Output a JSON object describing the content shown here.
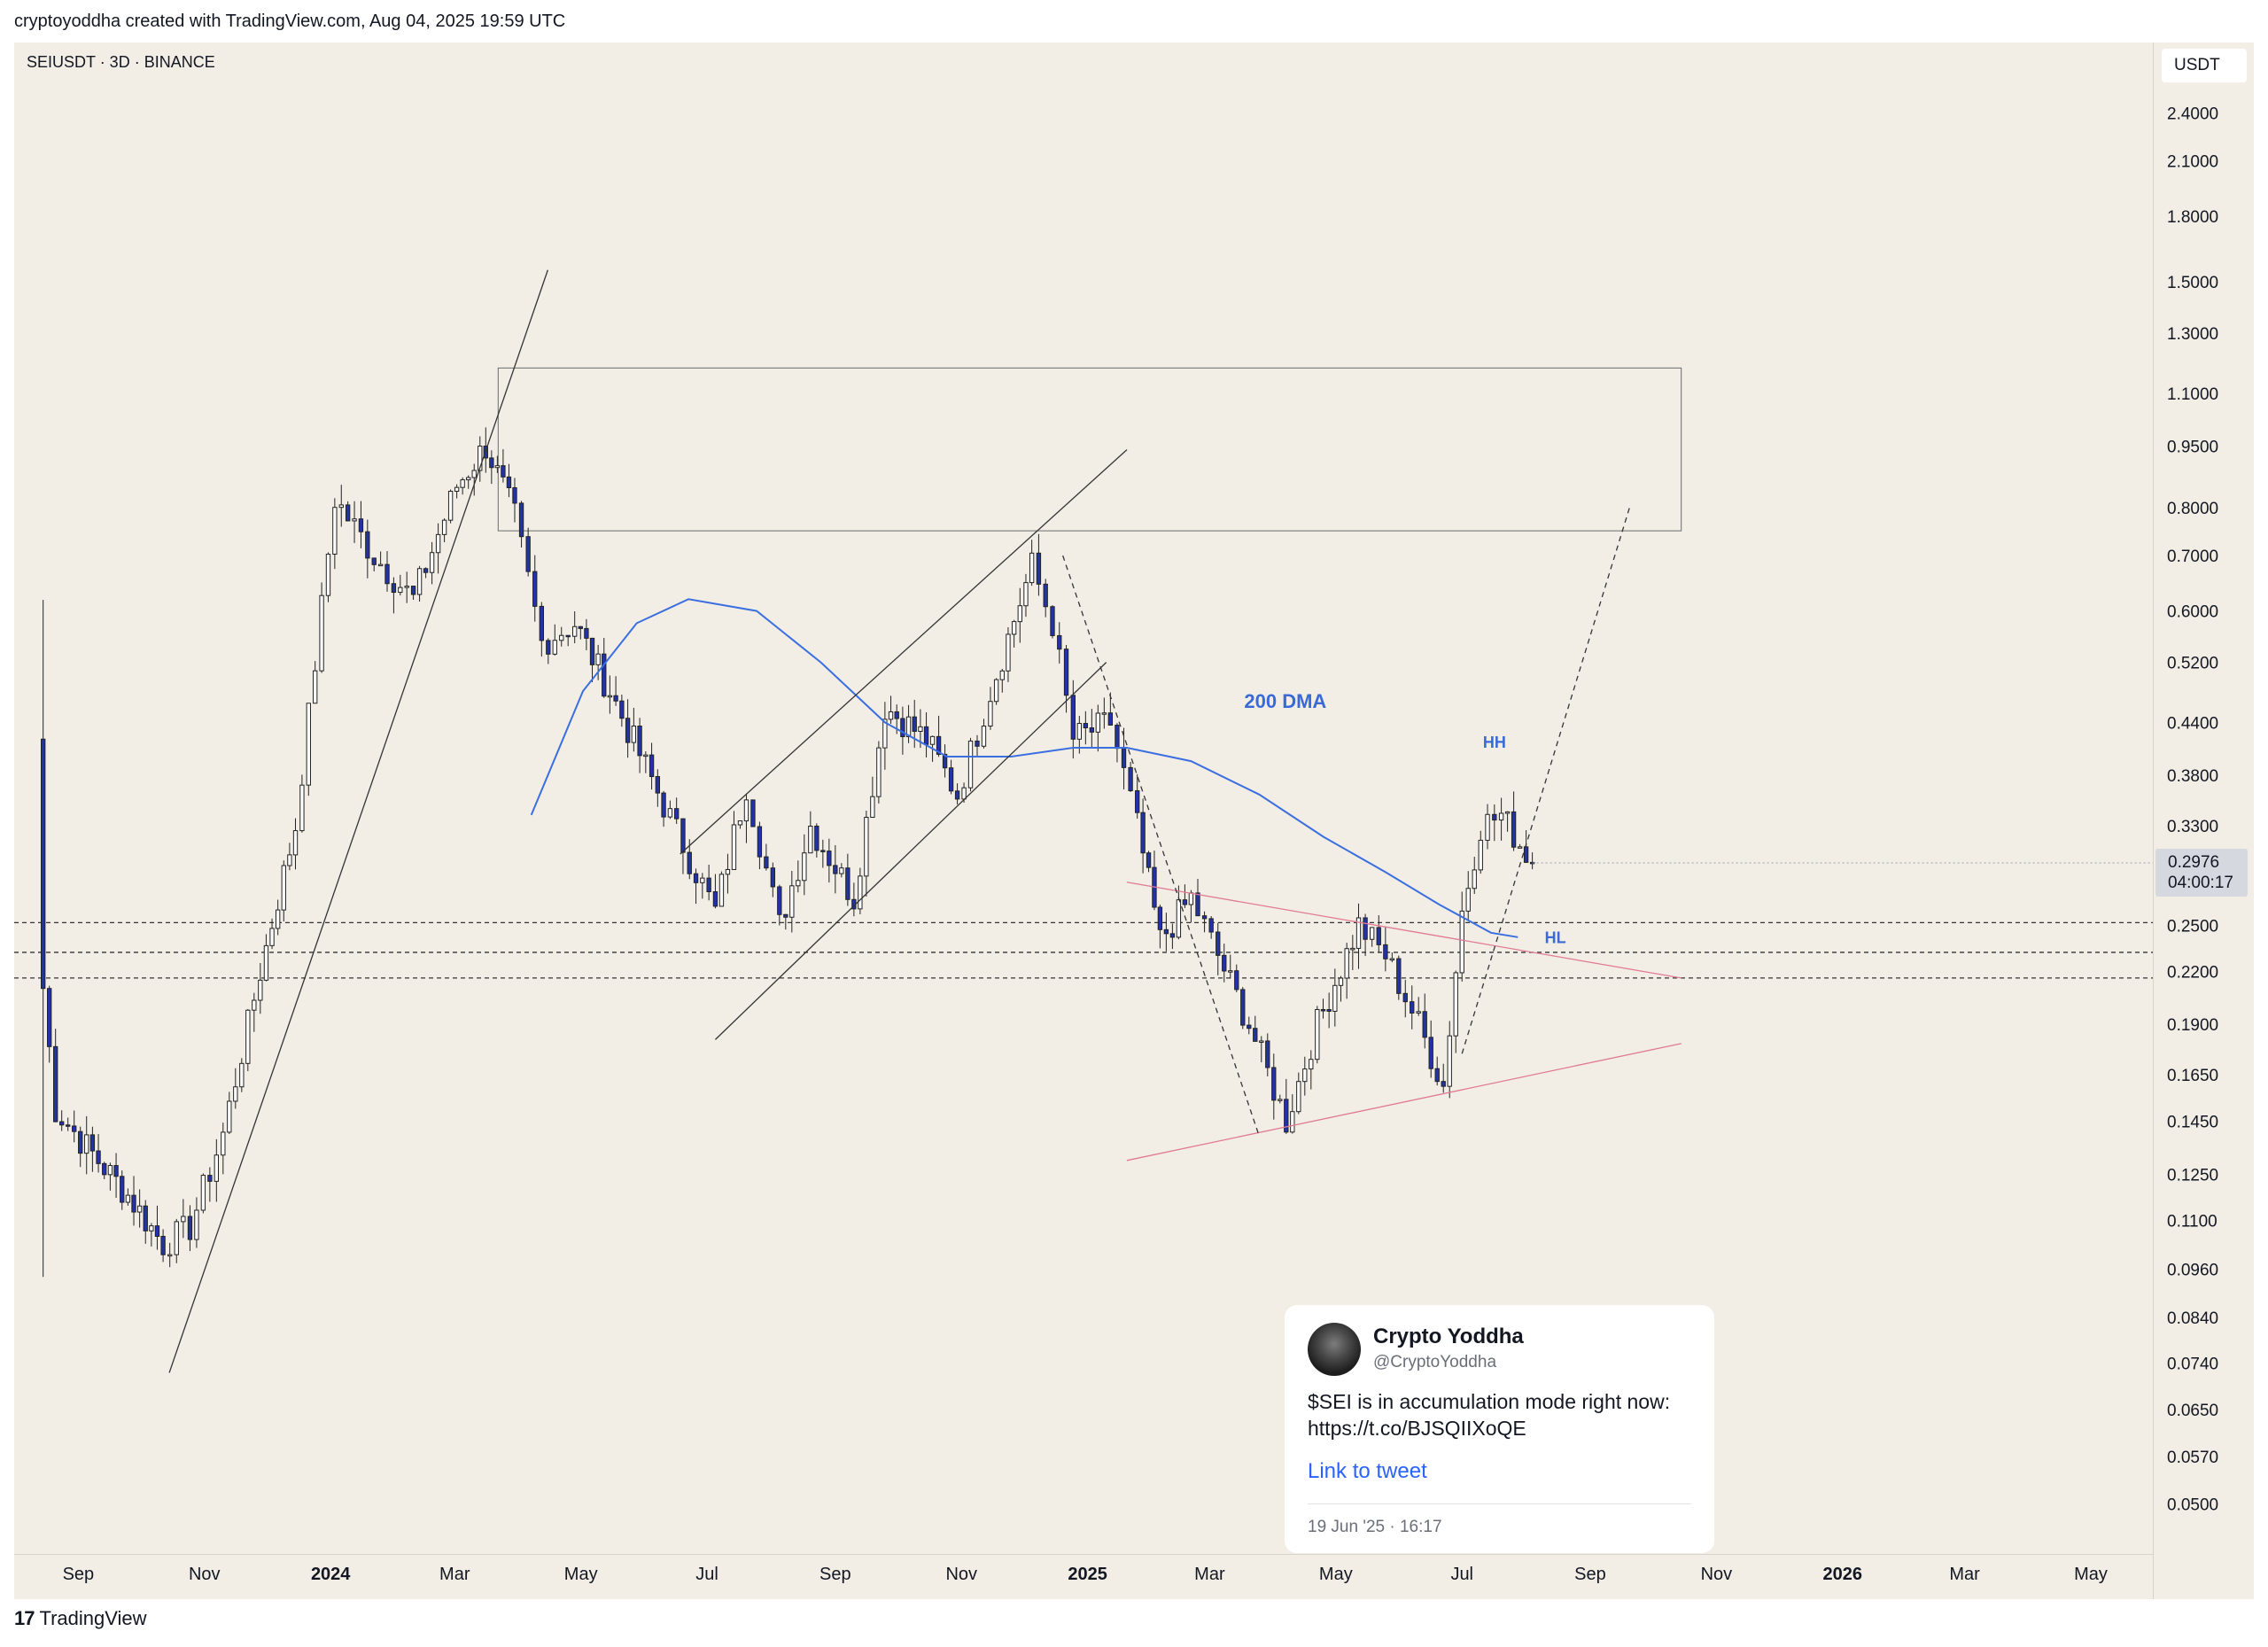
{
  "header": {
    "caption": "cryptoyoddha created with TradingView.com, Aug 04, 2025 19:59 UTC"
  },
  "symbol_label": "SEIUSDT · 3D · BINANCE",
  "currency": "USDT",
  "last_price": "0.2976",
  "countdown": "04:00:17",
  "annotations": {
    "dma_label": "200 DMA",
    "hh_label": "HH",
    "hl_label": "HL"
  },
  "tweet": {
    "name": "Crypto Yoddha",
    "handle": "@CryptoYoddha",
    "text": "$SEI is in accumulation mode right now: https://t.co/BJSQIIXoQE",
    "link_label": "Link to tweet",
    "date": "19 Jun '25 · 16:17"
  },
  "footer": {
    "brand": "TradingView",
    "logo": "17"
  },
  "colors": {
    "background": "#f2eee6",
    "candle_up": "#ffffff",
    "candle_down": "#2233aa",
    "dma": "#3b6fe0",
    "wedge": "#e07a93",
    "annotation_blue": "#3a6ad8"
  },
  "chart_data": {
    "type": "candlestick",
    "symbol": "SEIUSDT",
    "interval": "3D",
    "exchange": "BINANCE",
    "y_scale": "log",
    "ylim": [
      0.045,
      2.6
    ],
    "xlim": [
      "2023-08-01",
      "2026-05-31"
    ],
    "y_ticks": [
      "2.4000",
      "2.1000",
      "1.8000",
      "1.5000",
      "1.3000",
      "1.1000",
      "0.9500",
      "0.8000",
      "0.7000",
      "0.6000",
      "0.5200",
      "0.4400",
      "0.3800",
      "0.3300",
      "0.2500",
      "0.2200",
      "0.1900",
      "0.1650",
      "0.1450",
      "0.1250",
      "0.1100",
      "0.0960",
      "0.0840",
      "0.0740",
      "0.0650",
      "0.0570",
      "0.0500"
    ],
    "x_ticks": [
      {
        "label": "Sep",
        "date": "2023-09-01",
        "bold": false
      },
      {
        "label": "Nov",
        "date": "2023-11-01",
        "bold": false
      },
      {
        "label": "2024",
        "date": "2024-01-01",
        "bold": true
      },
      {
        "label": "Mar",
        "date": "2024-03-01",
        "bold": false
      },
      {
        "label": "May",
        "date": "2024-05-01",
        "bold": false
      },
      {
        "label": "Jul",
        "date": "2024-07-01",
        "bold": false
      },
      {
        "label": "Sep",
        "date": "2024-09-01",
        "bold": false
      },
      {
        "label": "Nov",
        "date": "2024-11-01",
        "bold": false
      },
      {
        "label": "2025",
        "date": "2025-01-01",
        "bold": true
      },
      {
        "label": "Mar",
        "date": "2025-03-01",
        "bold": false
      },
      {
        "label": "May",
        "date": "2025-05-01",
        "bold": false
      },
      {
        "label": "Jul",
        "date": "2025-07-01",
        "bold": false
      },
      {
        "label": "Sep",
        "date": "2025-09-01",
        "bold": false
      },
      {
        "label": "Nov",
        "date": "2025-11-01",
        "bold": false
      },
      {
        "label": "2026",
        "date": "2026-01-01",
        "bold": true
      },
      {
        "label": "Mar",
        "date": "2026-03-01",
        "bold": false
      },
      {
        "label": "May",
        "date": "2026-05-01",
        "bold": false
      }
    ],
    "candle_anchors": [
      {
        "date": "2023-08-15",
        "close": 0.21
      },
      {
        "date": "2023-08-21",
        "close": 0.15
      },
      {
        "date": "2023-09-05",
        "close": 0.135
      },
      {
        "date": "2023-09-25",
        "close": 0.118
      },
      {
        "date": "2023-10-12",
        "close": 0.103
      },
      {
        "date": "2023-10-25",
        "close": 0.108
      },
      {
        "date": "2023-11-10",
        "close": 0.14
      },
      {
        "date": "2023-11-28",
        "close": 0.22
      },
      {
        "date": "2023-12-15",
        "close": 0.33
      },
      {
        "date": "2024-01-03",
        "close": 0.82
      },
      {
        "date": "2024-01-22",
        "close": 0.7
      },
      {
        "date": "2024-02-10",
        "close": 0.62
      },
      {
        "date": "2024-03-02",
        "close": 0.85
      },
      {
        "date": "2024-03-16",
        "close": 0.95
      },
      {
        "date": "2024-03-30",
        "close": 0.78
      },
      {
        "date": "2024-04-12",
        "close": 0.55
      },
      {
        "date": "2024-04-28",
        "close": 0.58
      },
      {
        "date": "2024-05-15",
        "close": 0.48
      },
      {
        "date": "2024-06-10",
        "close": 0.35
      },
      {
        "date": "2024-07-05",
        "close": 0.26
      },
      {
        "date": "2024-07-20",
        "close": 0.37
      },
      {
        "date": "2024-08-05",
        "close": 0.25
      },
      {
        "date": "2024-08-20",
        "close": 0.33
      },
      {
        "date": "2024-09-10",
        "close": 0.27
      },
      {
        "date": "2024-09-25",
        "close": 0.46
      },
      {
        "date": "2024-10-15",
        "close": 0.42
      },
      {
        "date": "2024-10-30",
        "close": 0.36
      },
      {
        "date": "2024-11-15",
        "close": 0.48
      },
      {
        "date": "2024-12-05",
        "close": 0.68
      },
      {
        "date": "2024-12-15",
        "close": 0.58
      },
      {
        "date": "2024-12-25",
        "close": 0.42
      },
      {
        "date": "2025-01-12",
        "close": 0.44
      },
      {
        "date": "2025-01-25",
        "close": 0.33
      },
      {
        "date": "2025-02-05",
        "close": 0.24
      },
      {
        "date": "2025-02-20",
        "close": 0.27
      },
      {
        "date": "2025-03-05",
        "close": 0.23
      },
      {
        "date": "2025-03-20",
        "close": 0.19
      },
      {
        "date": "2025-04-07",
        "close": 0.145
      },
      {
        "date": "2025-04-22",
        "close": 0.19
      },
      {
        "date": "2025-05-12",
        "close": 0.25
      },
      {
        "date": "2025-05-25",
        "close": 0.23
      },
      {
        "date": "2025-06-10",
        "close": 0.19
      },
      {
        "date": "2025-06-22",
        "close": 0.16
      },
      {
        "date": "2025-07-01",
        "close": 0.26
      },
      {
        "date": "2025-07-10",
        "close": 0.33
      },
      {
        "date": "2025-07-20",
        "close": 0.34
      },
      {
        "date": "2025-08-04",
        "close": 0.2976
      }
    ],
    "dma_200": [
      {
        "date": "2024-04-07",
        "value": 0.34
      },
      {
        "date": "2024-05-02",
        "value": 0.48
      },
      {
        "date": "2024-05-28",
        "value": 0.58
      },
      {
        "date": "2024-06-22",
        "value": 0.62
      },
      {
        "date": "2024-07-25",
        "value": 0.6
      },
      {
        "date": "2024-08-25",
        "value": 0.52
      },
      {
        "date": "2024-09-25",
        "value": 0.44
      },
      {
        "date": "2024-10-25",
        "value": 0.4
      },
      {
        "date": "2024-11-25",
        "value": 0.4
      },
      {
        "date": "2024-12-25",
        "value": 0.41
      },
      {
        "date": "2025-01-20",
        "value": 0.41
      },
      {
        "date": "2025-02-20",
        "value": 0.395
      },
      {
        "date": "2025-03-25",
        "value": 0.36
      },
      {
        "date": "2025-04-25",
        "value": 0.32
      },
      {
        "date": "2025-05-25",
        "value": 0.29
      },
      {
        "date": "2025-06-20",
        "value": 0.265
      },
      {
        "date": "2025-07-15",
        "value": 0.245
      },
      {
        "date": "2025-07-28",
        "value": 0.242
      }
    ],
    "levels": [
      0.252,
      0.232,
      0.216
    ],
    "supply_zone": {
      "from": "2024-03-22",
      "to": "2025-10-15",
      "low": 0.75,
      "high": 1.18
    }
  }
}
